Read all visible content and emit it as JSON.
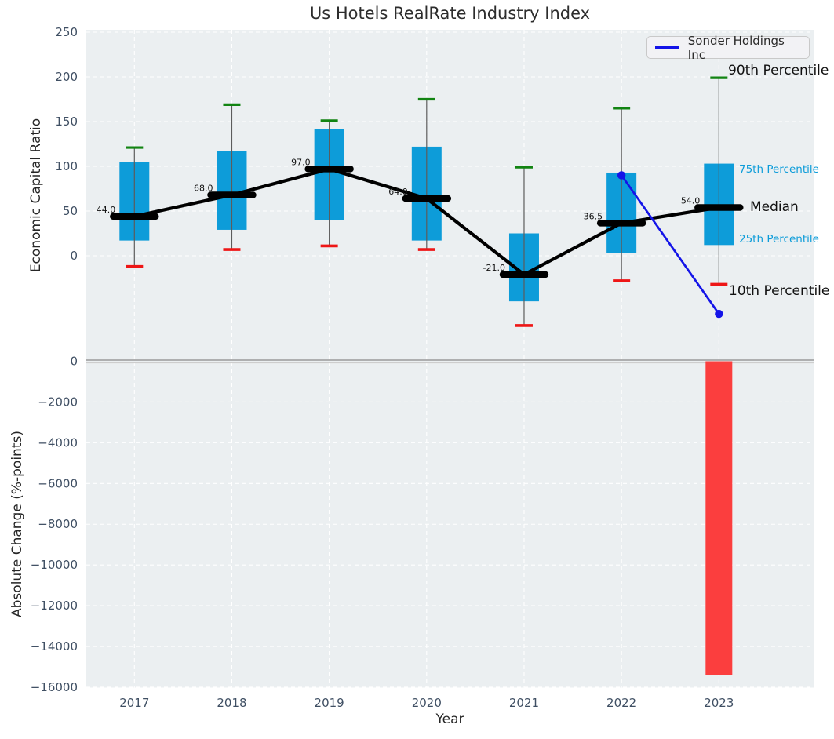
{
  "figure": {
    "title": "Us Hotels RealRate Industry Index"
  },
  "legend": {
    "label": "Sonder Holdings Inc"
  },
  "axes": {
    "top": {
      "ylabel": "Economic Capital Ratio",
      "tick_values": [
        250,
        200,
        150,
        100,
        50,
        0
      ],
      "tick_labels": [
        "250",
        "200",
        "150",
        "100",
        "50",
        "0"
      ]
    },
    "bottom": {
      "ylabel": "Absolute Change (%-points)",
      "tick_values": [
        0,
        -2000,
        -4000,
        -6000,
        -8000,
        -10000,
        -12000,
        -14000,
        -16000
      ],
      "tick_labels": [
        "0",
        "−2000",
        "−4000",
        "−6000",
        "−8000",
        "−10000",
        "−12000",
        "−14000",
        "−16000"
      ]
    },
    "x": {
      "label": "Year",
      "tick_labels": [
        "2017",
        "2018",
        "2019",
        "2020",
        "2021",
        "2022",
        "2023"
      ]
    }
  },
  "annotations": {
    "p90": "90th Percentile",
    "p75": "75th Percentile",
    "median": "Median",
    "p25": "25th Percentile",
    "p10": "10th Percentile"
  },
  "colors": {
    "box_fill": "#0d9cd9",
    "p90_cap": "#128412",
    "p10_cap": "#ee1616",
    "median_line": "#000000",
    "trend_line": "#000000",
    "sonder": "#1414e8",
    "bar_negative": "#fb3e3e",
    "plot_bg": "#ebeff1",
    "grid": "#ffffff",
    "whisker": "#5c5c5c",
    "tick_text": "#3f4f63"
  },
  "chart_data": [
    {
      "type": "box",
      "title": "Us Hotels RealRate Industry Index",
      "xlabel": "Year",
      "ylabel": "Economic Capital Ratio",
      "grid": true,
      "legend_position": "upper right",
      "ylim": [
        -117,
        250
      ],
      "categories": [
        2017,
        2018,
        2019,
        2020,
        2021,
        2022,
        2023
      ],
      "boxes": [
        {
          "year": 2017,
          "p10": -12,
          "q1": 17,
          "median": 44.0,
          "q3": 105,
          "p90": 121
        },
        {
          "year": 2018,
          "p10": 7,
          "q1": 29,
          "median": 68.0,
          "q3": 117,
          "p90": 169
        },
        {
          "year": 2019,
          "p10": 11,
          "q1": 40,
          "median": 97.0,
          "q3": 142,
          "p90": 151
        },
        {
          "year": 2020,
          "p10": 7,
          "q1": 17,
          "median": 64.0,
          "q3": 122,
          "p90": 175
        },
        {
          "year": 2021,
          "p10": -78,
          "q1": -51,
          "median": -21.0,
          "q3": 25,
          "p90": 99
        },
        {
          "year": 2022,
          "p10": -28,
          "q1": 3,
          "median": 36.5,
          "q3": 93,
          "p90": 165
        },
        {
          "year": 2023,
          "p10": -32,
          "q1": 12,
          "median": 54.0,
          "q3": 103,
          "p90": 199
        }
      ],
      "median_labels": [
        "44.0",
        "68.0",
        "97.0",
        "64.0",
        "-21.0",
        "36.5",
        "54.0"
      ],
      "series": [
        {
          "name": "Sonder Holdings Inc",
          "x": [
            2022,
            2023
          ],
          "y": [
            90,
            -65
          ]
        }
      ]
    },
    {
      "type": "bar",
      "xlabel": "Year",
      "ylabel": "Absolute Change (%-points)",
      "grid": true,
      "ylim": [
        -16600,
        0
      ],
      "categories": [
        2017,
        2018,
        2019,
        2020,
        2021,
        2022,
        2023
      ],
      "values": [
        null,
        null,
        null,
        null,
        null,
        null,
        -15400
      ]
    }
  ]
}
